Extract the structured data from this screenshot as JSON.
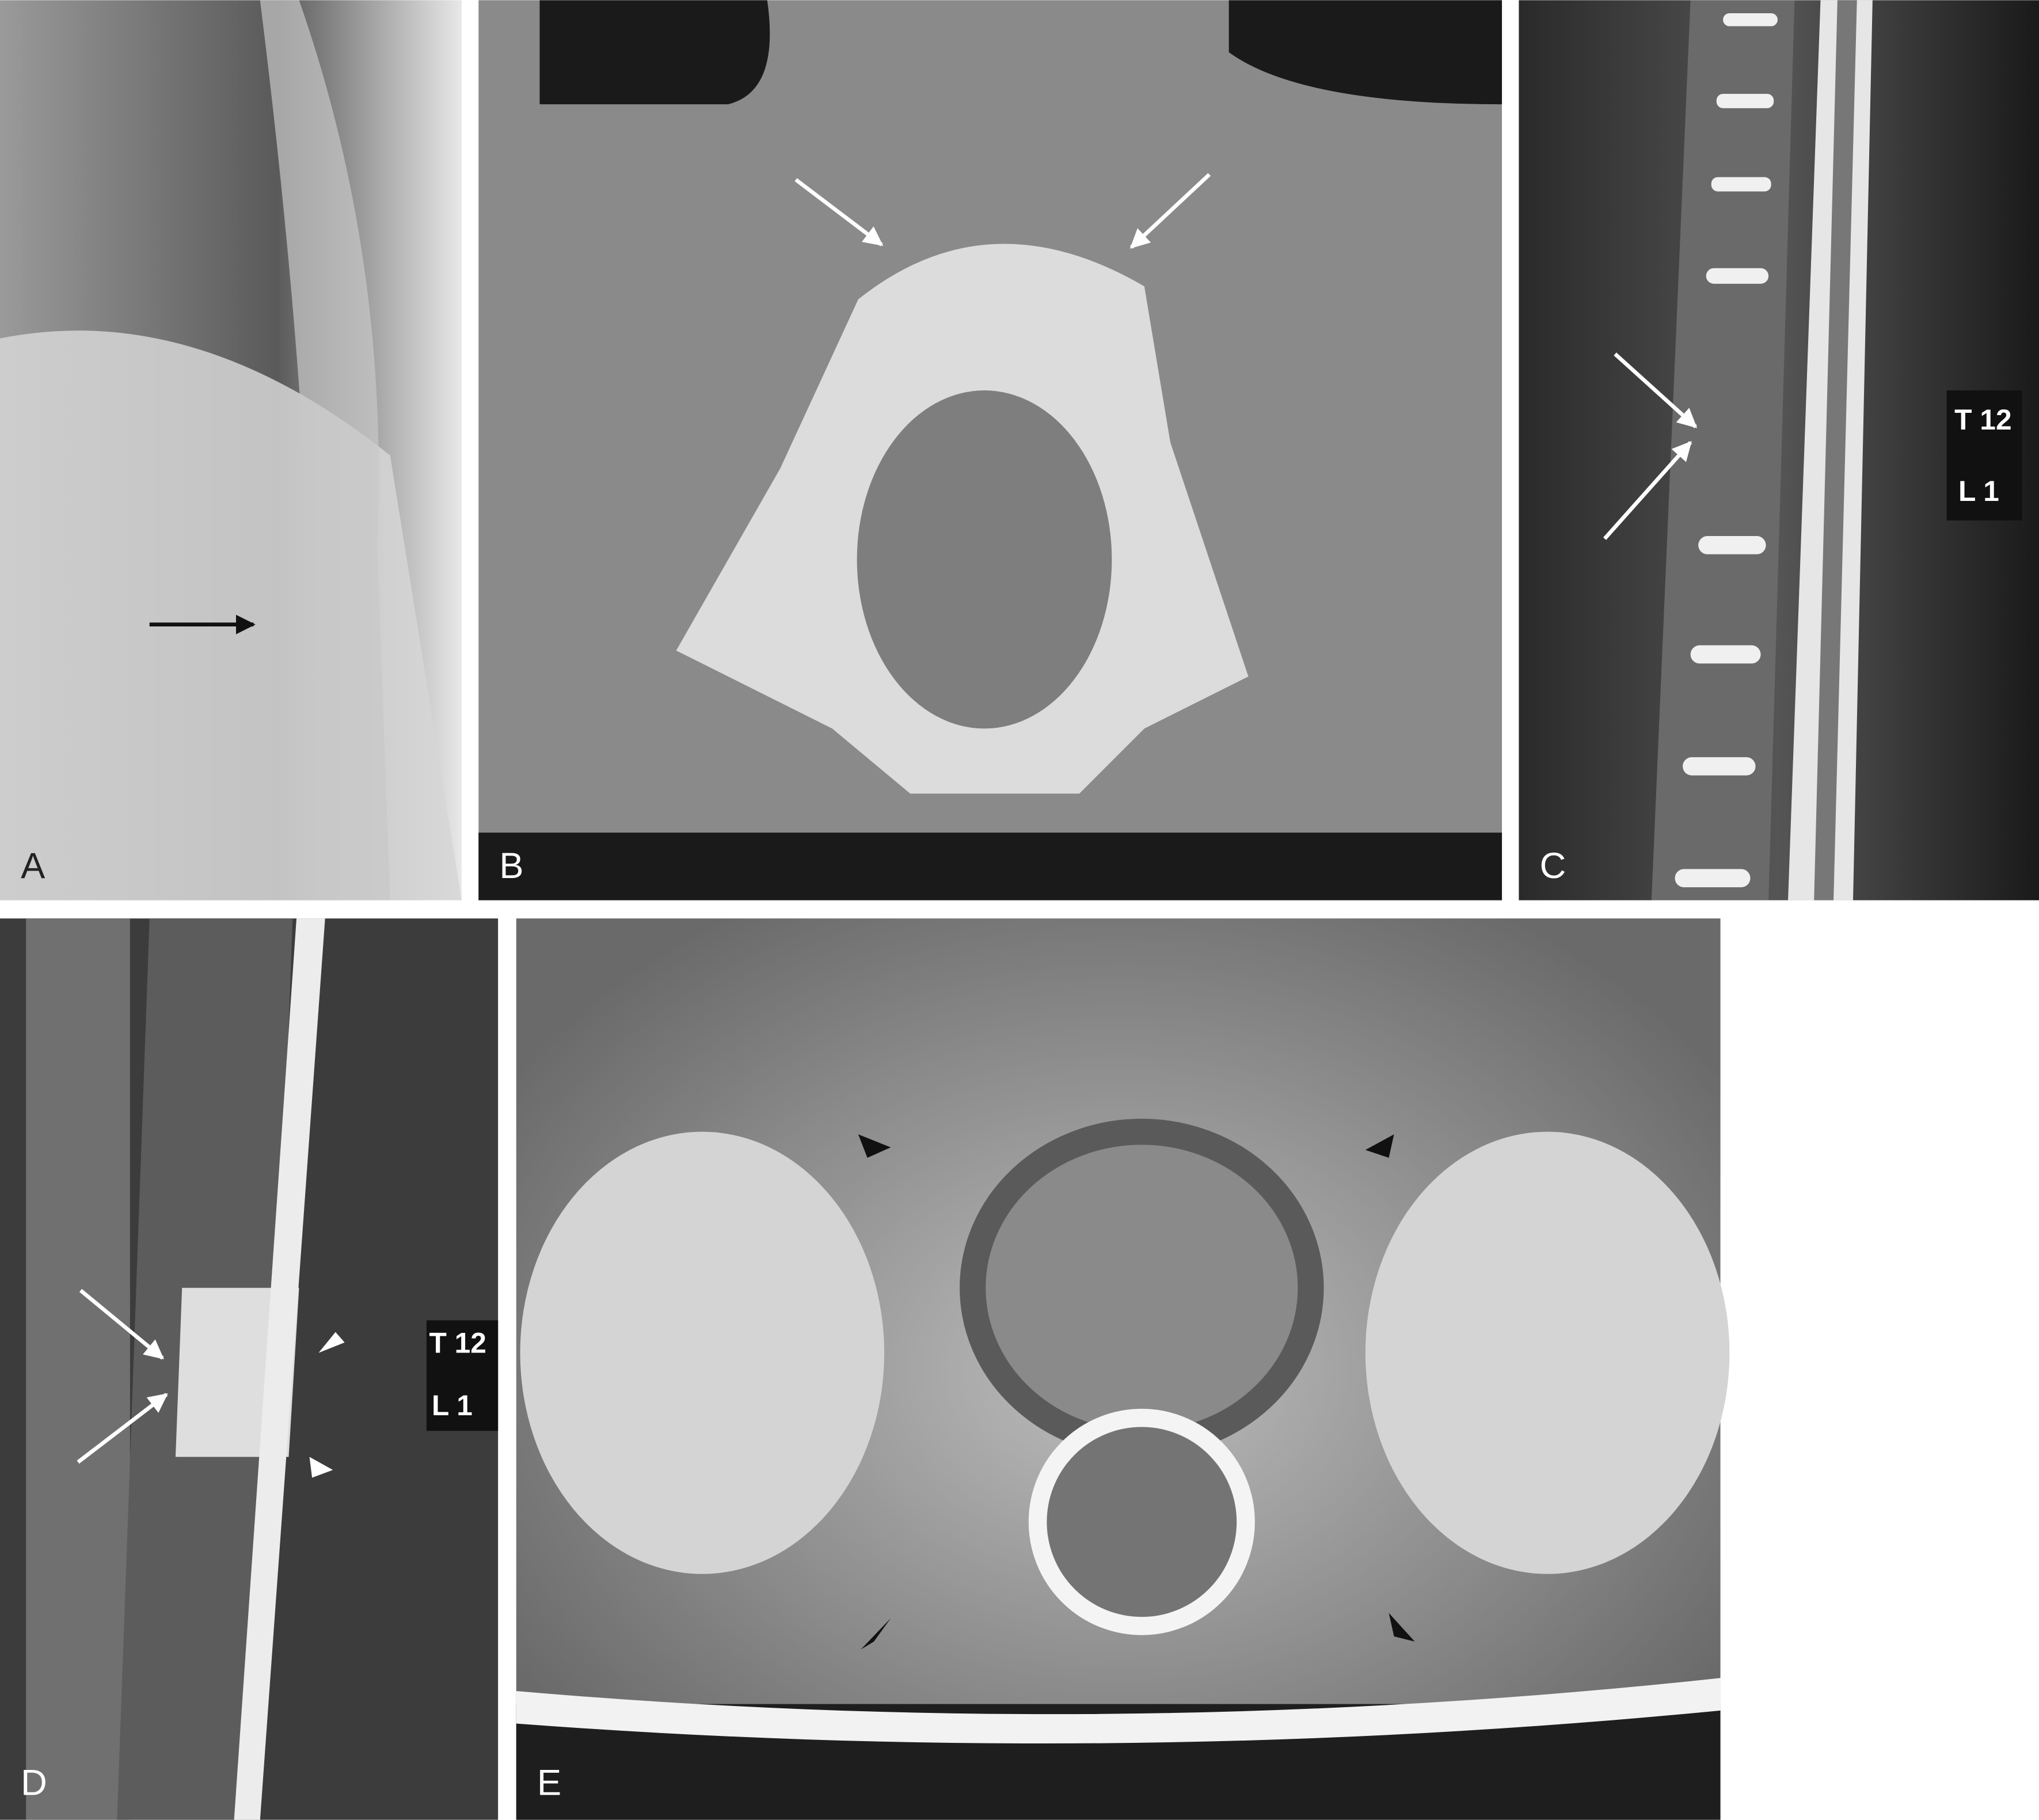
{
  "panels": [
    {
      "label": "A"
    },
    {
      "label": "B"
    },
    {
      "label": "C",
      "levels": [
        "T 12",
        "L 1"
      ]
    },
    {
      "label": "D",
      "levels": [
        "T 12",
        "L 1"
      ]
    },
    {
      "label": "E"
    }
  ]
}
